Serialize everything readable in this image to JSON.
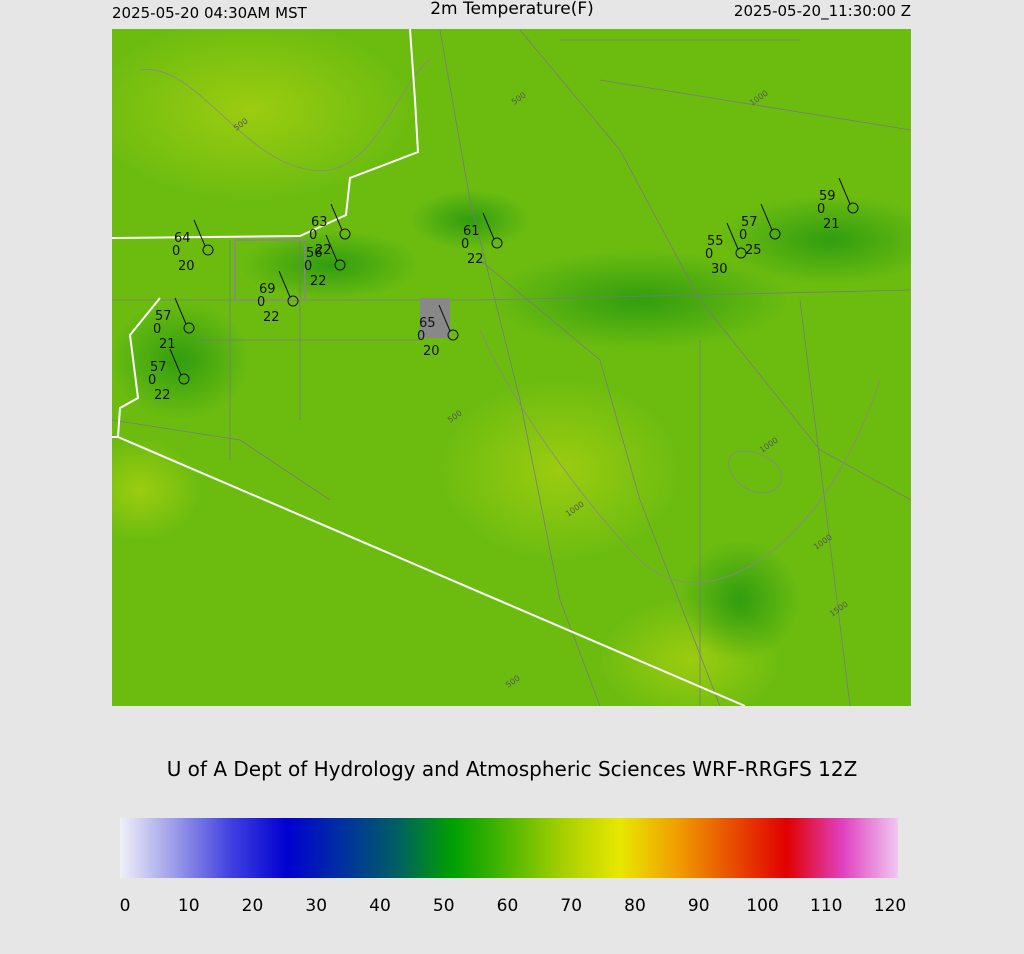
{
  "header": {
    "left": "2025-05-20 04:30AM MST",
    "title": "2m Temperature(F)",
    "right": "2025-05-20_11:30:00 Z"
  },
  "credit": "U of A Dept of Hydrology and Atmospheric Sciences WRF-RRGFS 12Z",
  "stations": [
    {
      "temp": 64,
      "precip": 0,
      "dew": 20
    },
    {
      "temp": 63,
      "precip": 0,
      "dew": 22
    },
    {
      "temp": 56,
      "precip": 0,
      "dew": 22
    },
    {
      "temp": 69,
      "precip": 0,
      "dew": 22
    },
    {
      "temp": 57,
      "precip": 0,
      "dew": 21
    },
    {
      "temp": 57,
      "precip": 0,
      "dew": 22
    },
    {
      "temp": 61,
      "precip": 0,
      "dew": 22
    },
    {
      "temp": 65,
      "precip": 0,
      "dew": 20
    },
    {
      "temp": 55,
      "precip": 0,
      "dew": 30
    },
    {
      "temp": 57,
      "precip": 0,
      "dew": 25
    },
    {
      "temp": 59,
      "precip": 0,
      "dew": 21
    }
  ],
  "contour_labels": [
    500,
    500,
    1000,
    500,
    1000,
    1000,
    1000,
    1500,
    500
  ],
  "colorbar": {
    "ticks": [
      0,
      10,
      20,
      30,
      40,
      50,
      60,
      70,
      80,
      90,
      100,
      110,
      120
    ],
    "colors": [
      "#f0f0f8",
      "#9a9ae8",
      "#4040e0",
      "#0000d0",
      "#0030a0",
      "#006060",
      "#00a000",
      "#50b800",
      "#a8d000",
      "#e8e800",
      "#f0a000",
      "#e85000",
      "#e00000",
      "#e040c0",
      "#f0c8f0"
    ]
  }
}
